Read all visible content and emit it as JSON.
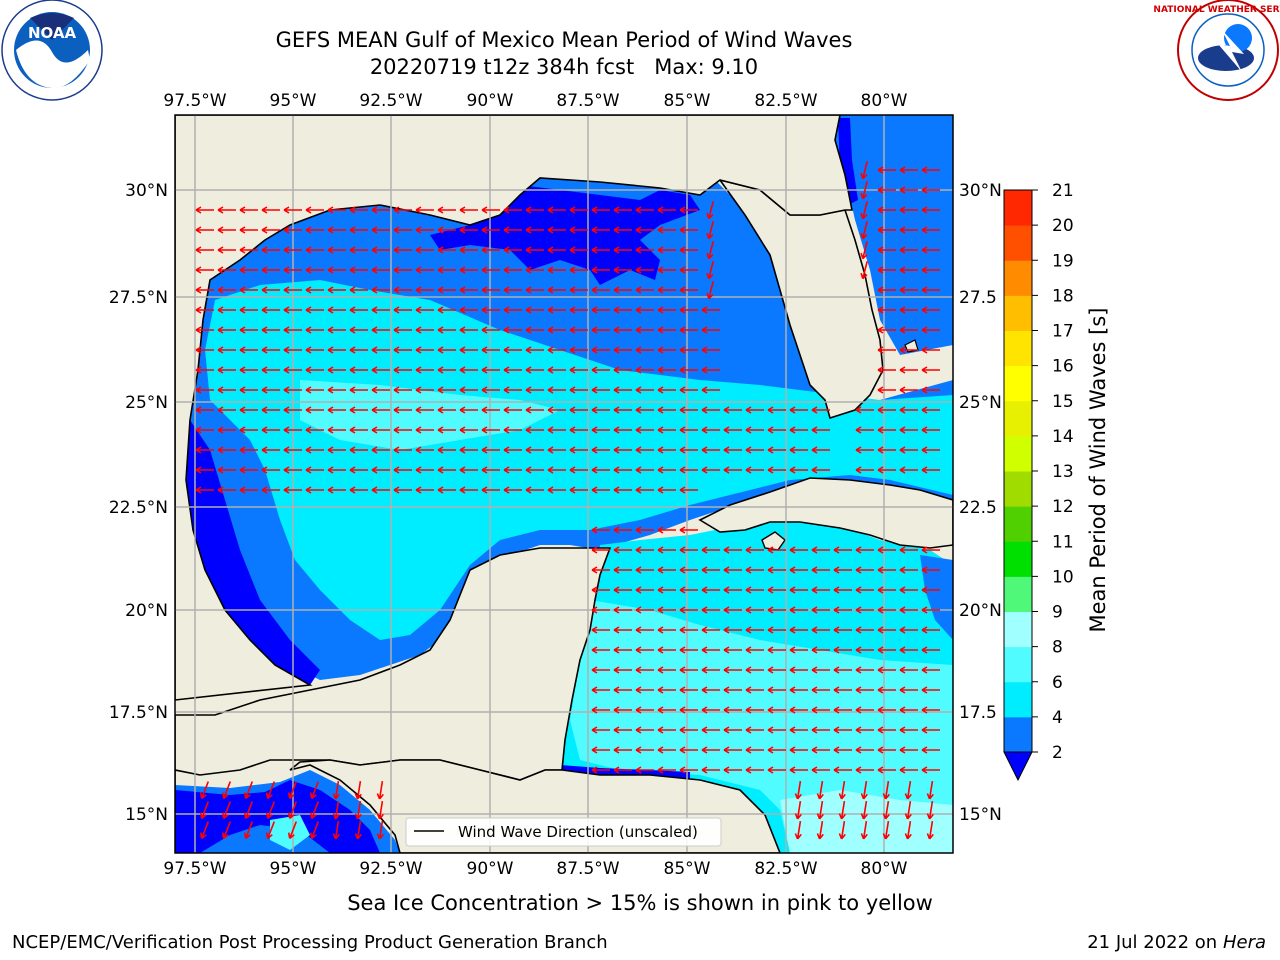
{
  "title": {
    "line1": "GEFS MEAN Gulf of Mexico Mean Period of Wind Waves",
    "line2": "20220719 t12z 384h fcst   Max: 9.10"
  },
  "logos": {
    "left": {
      "name": "noaa-logo",
      "text": "NOAA"
    },
    "right": {
      "name": "nws-logo",
      "text": "NATIONAL WEATHER SERVICE"
    }
  },
  "map": {
    "lon_ticks": [
      "97.5°W",
      "95°W",
      "92.5°W",
      "90°W",
      "87.5°W",
      "85°W",
      "82.5°W",
      "80°W"
    ],
    "lat_ticks": [
      "30°N",
      "27.5°N",
      "25°N",
      "22.5°N",
      "20°N",
      "17.5°N",
      "15°N"
    ],
    "lat_ticks_right": [
      "30°N",
      "27.5",
      "25°N",
      "22.5",
      "20°N",
      "17.5",
      "15°N"
    ],
    "legend_label": "Wind Wave Direction (unscaled)",
    "colors": {
      "land": "#efedde",
      "coast": "#000000",
      "grid": "#b0b0b0",
      "arrow": "#ff0000"
    }
  },
  "colorbar": {
    "label": "Mean Period of Wind Waves [s]",
    "ticks": [
      "2",
      "4",
      "6",
      "8",
      "9",
      "10",
      "11",
      "12",
      "13",
      "14",
      "15",
      "16",
      "17",
      "18",
      "19",
      "20",
      "21"
    ],
    "colors": [
      "#0a78ff",
      "#00ecff",
      "#50fcff",
      "#a0ffff",
      "#50f87a",
      "#00e000",
      "#50d000",
      "#a0dc00",
      "#d0ff00",
      "#e6f000",
      "#ffff00",
      "#ffe400",
      "#ffbe00",
      "#ff8c00",
      "#ff5000",
      "#ff2800",
      "#ff0000"
    ],
    "under_color": "#0000ff"
  },
  "subtitle": "Sea Ice Concentration > 15% is shown in pink to yellow",
  "footer": {
    "left": "NCEP/EMC/Verification Post Processing Product Generation Branch",
    "right_date": "21 Jul 2022 on ",
    "right_host": "Hera"
  }
}
